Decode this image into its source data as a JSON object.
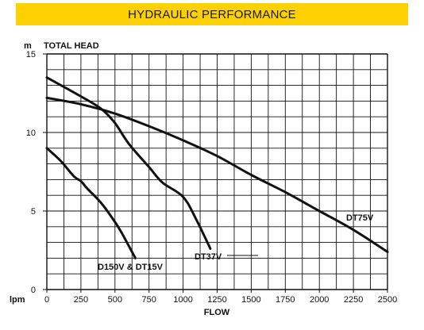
{
  "header": {
    "title": "HYDRAULIC PERFORMANCE"
  },
  "colors": {
    "banner": "#fdd000",
    "grid": "#111111",
    "curve": "#111111"
  },
  "chart_data": {
    "type": "line",
    "title": "",
    "xlabel": "FLOW",
    "ylabel": "TOTAL HEAD",
    "x_unit": "lpm",
    "y_unit": "m",
    "xlim": [
      0,
      2500
    ],
    "ylim": [
      0,
      15
    ],
    "x_ticks": [
      "0",
      "250",
      "500",
      "750",
      "1000",
      "1250",
      "1500",
      "1750",
      "2000",
      "2250",
      "2500"
    ],
    "y_ticks": [
      "0",
      "5",
      "10",
      "15"
    ],
    "grid": true,
    "series": [
      {
        "name": "DT75V",
        "x": [
          0,
          250,
          500,
          750,
          1000,
          1250,
          1500,
          1750,
          2000,
          2250,
          2500
        ],
        "y": [
          12.2,
          11.8,
          11.2,
          10.4,
          9.5,
          8.5,
          7.3,
          6.2,
          5.0,
          3.8,
          2.4
        ]
      },
      {
        "name": "DT37V",
        "x": [
          0,
          250,
          400,
          500,
          600,
          750,
          850,
          1000,
          1100,
          1200
        ],
        "y": [
          13.5,
          12.3,
          11.5,
          10.6,
          9.3,
          7.8,
          6.8,
          5.9,
          4.4,
          2.6
        ]
      },
      {
        "name": "D150V & DT15V",
        "x": [
          0,
          100,
          200,
          250,
          300,
          400,
          500,
          550,
          600,
          650
        ],
        "y": [
          9.0,
          8.2,
          7.2,
          6.9,
          6.4,
          5.5,
          4.3,
          3.6,
          2.8,
          2.0
        ]
      }
    ]
  }
}
